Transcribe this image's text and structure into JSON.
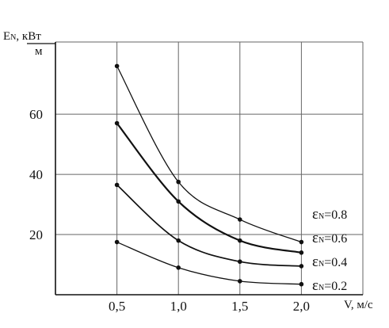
{
  "chart_data": {
    "type": "line",
    "y_label": {
      "main": "E",
      "sub": "N",
      "rest": ", кВт",
      "denominator": "м"
    },
    "x_label": "V, м/с",
    "x_ticks": [
      "0,5",
      "1,0",
      "1,5",
      "2,0"
    ],
    "x_tick_values": [
      0.5,
      1.0,
      1.5,
      2.0
    ],
    "y_ticks": [
      "20",
      "40",
      "60"
    ],
    "y_tick_values": [
      20,
      40,
      60
    ],
    "xlim": [
      0,
      2.5
    ],
    "ylim": [
      0,
      84
    ],
    "grid": true,
    "x": [
      0.5,
      1.0,
      1.5,
      2.0
    ],
    "series": [
      {
        "label_main": "ε",
        "label_sub": "N",
        "label_rest": "=0.8",
        "values": [
          76,
          37.5,
          25,
          17.5
        ]
      },
      {
        "label_main": "ε",
        "label_sub": "N",
        "label_rest": "=0.6",
        "values": [
          57,
          31,
          18,
          14
        ]
      },
      {
        "label_main": "ε",
        "label_sub": "N",
        "label_rest": "=0.4",
        "values": [
          36.5,
          18,
          11,
          9.5
        ]
      },
      {
        "label_main": "ε",
        "label_sub": "N",
        "label_rest": "=0.2",
        "values": [
          17.5,
          9,
          4.5,
          3.5
        ]
      }
    ]
  }
}
